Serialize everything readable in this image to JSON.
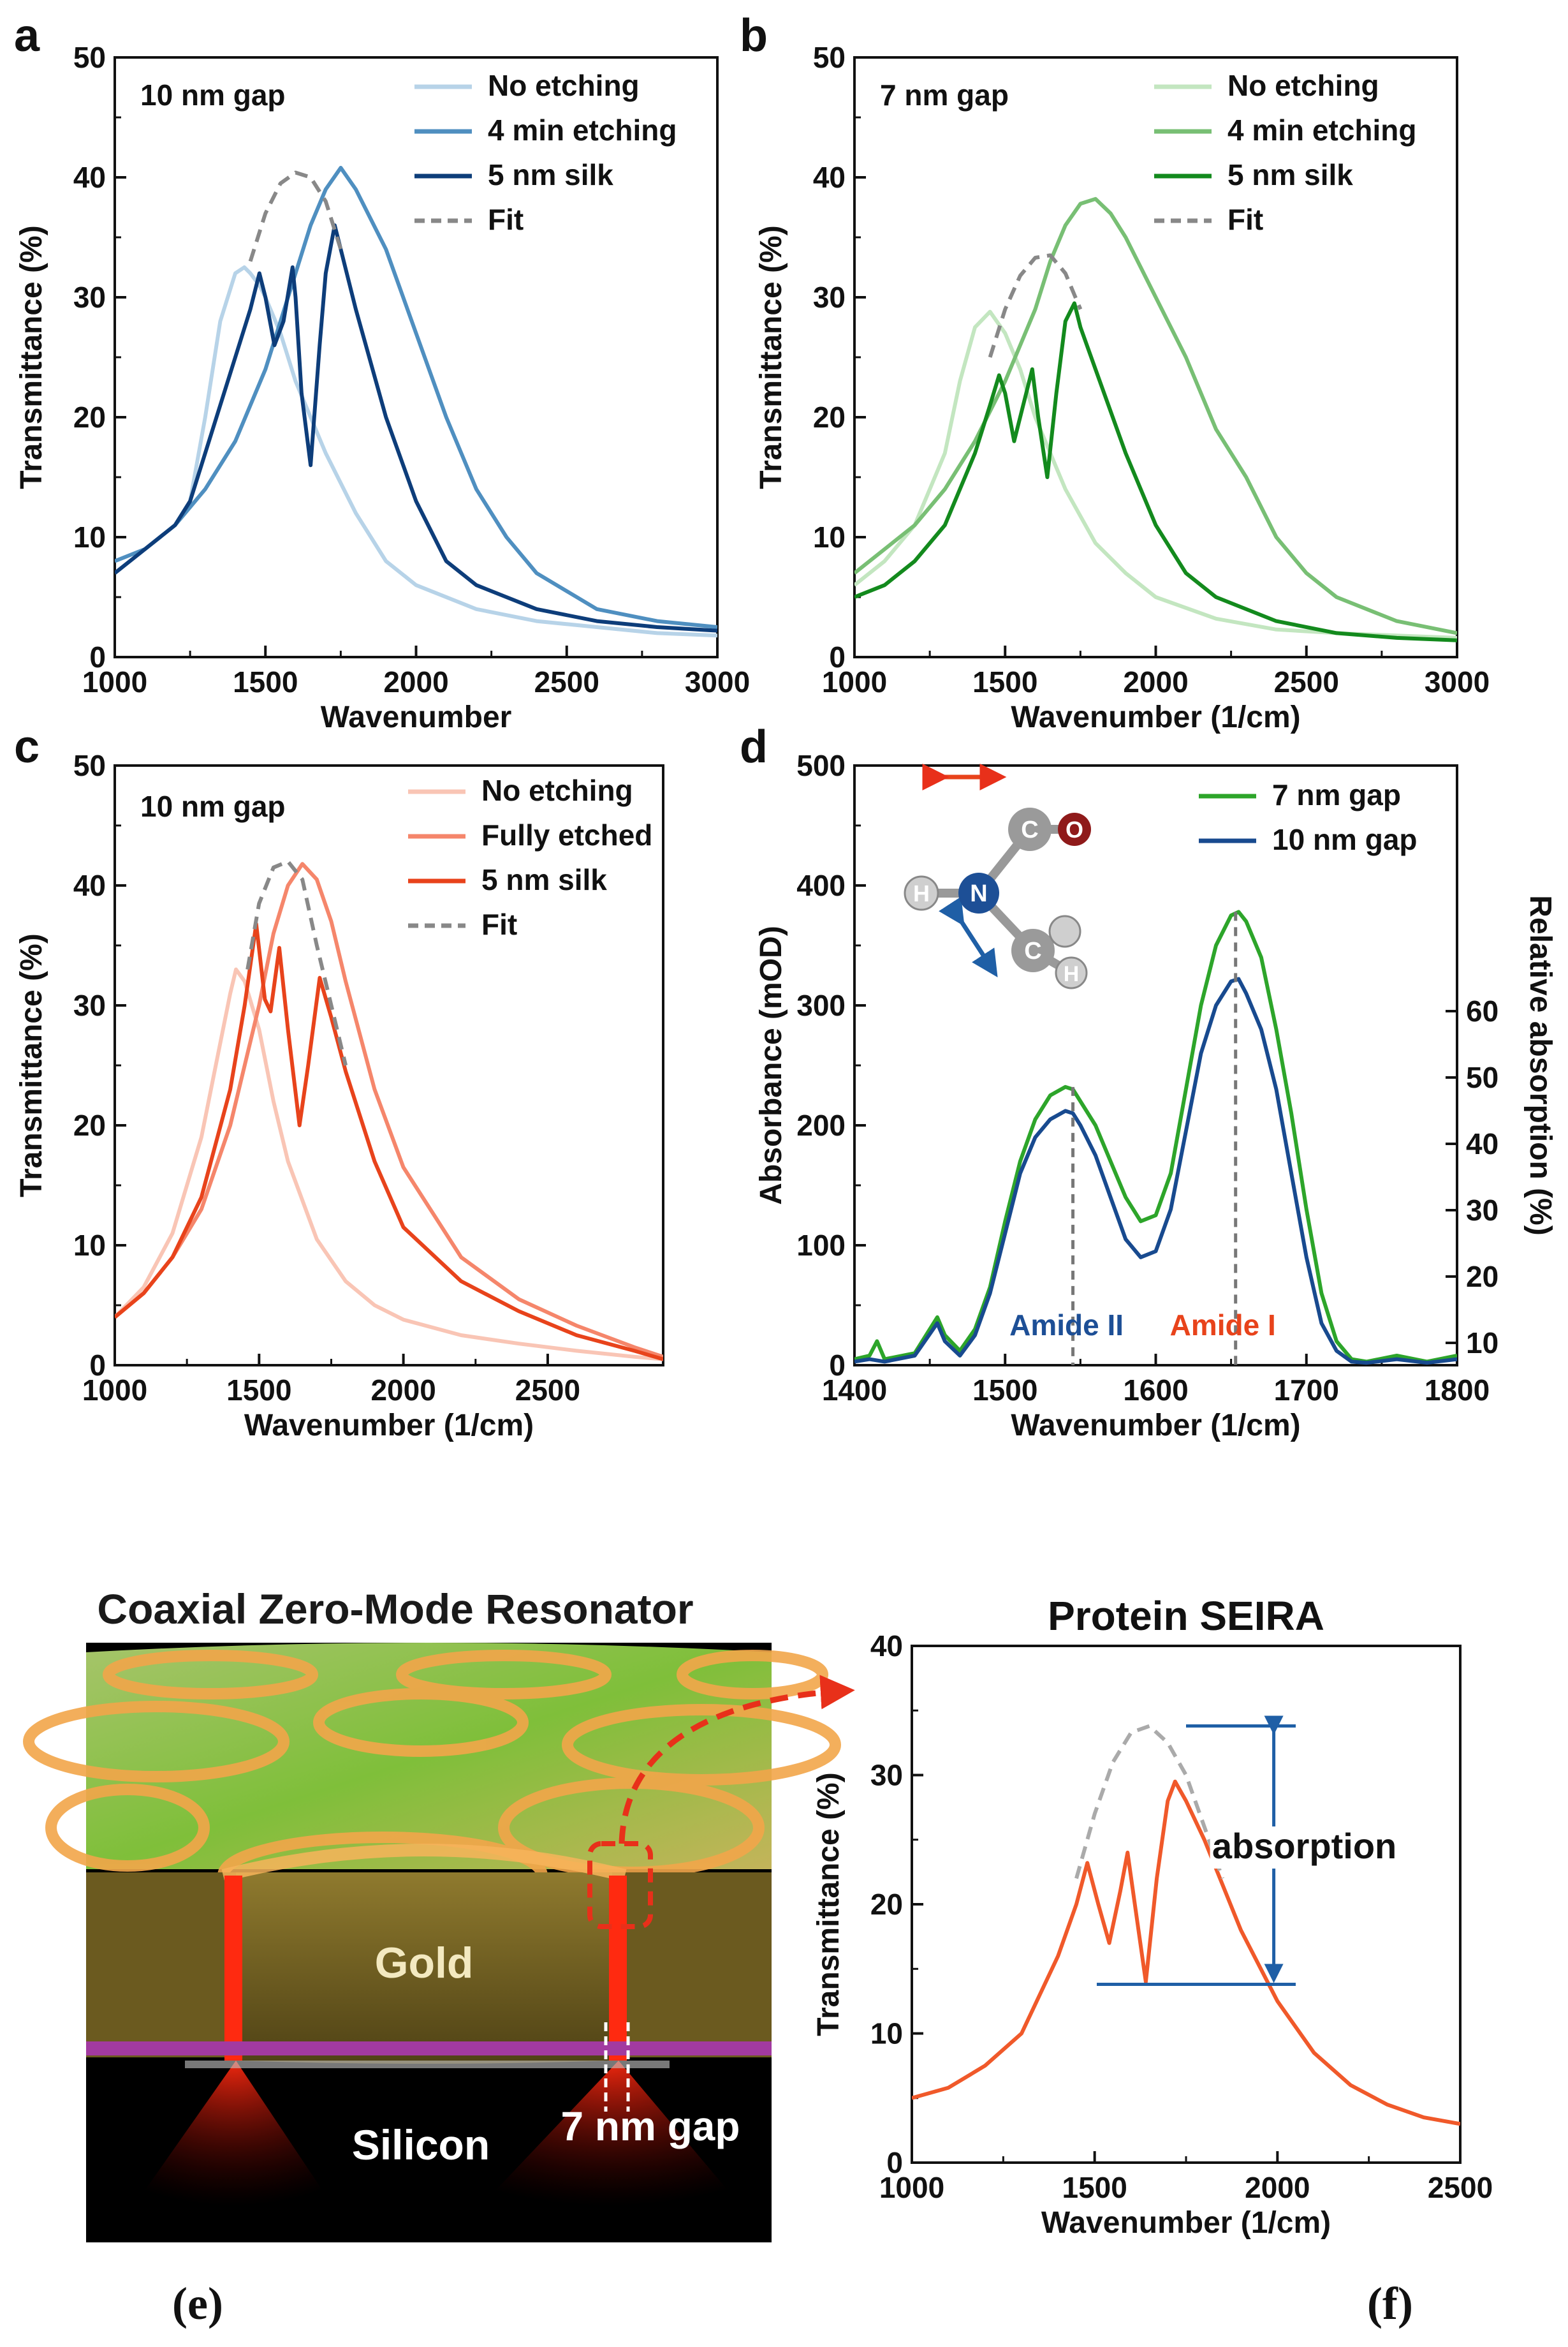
{
  "chart_data": [
    {
      "panel": "a",
      "type": "line",
      "annotation": "10 nm gap",
      "xlabel": "Wavenumber",
      "ylabel": "Transmittance (%)",
      "xlim": [
        1000,
        3000
      ],
      "ylim": [
        0,
        50
      ],
      "xticks": [
        1000,
        1500,
        2000,
        2500,
        3000
      ],
      "yticks": [
        0,
        10,
        20,
        30,
        40,
        50
      ],
      "legend_position": "top-right",
      "series": [
        {
          "name": "No etching",
          "color": "#b7d3e8",
          "style": "solid",
          "x": [
            1000,
            1100,
            1200,
            1250,
            1300,
            1350,
            1400,
            1430,
            1450,
            1480,
            1500,
            1550,
            1600,
            1700,
            1800,
            1900,
            2000,
            2200,
            2400,
            2600,
            2800,
            3000
          ],
          "y": [
            7,
            9,
            11,
            13,
            20,
            28,
            32,
            32.5,
            32,
            31,
            30,
            27,
            23,
            17,
            12,
            8,
            6,
            4,
            3,
            2.5,
            2,
            1.8
          ]
        },
        {
          "name": "4 min etching",
          "color": "#4f8fc0",
          "style": "solid",
          "x": [
            1000,
            1100,
            1200,
            1300,
            1400,
            1500,
            1550,
            1600,
            1650,
            1700,
            1750,
            1800,
            1900,
            2000,
            2100,
            2200,
            2300,
            2400,
            2600,
            2800,
            3000
          ],
          "y": [
            8,
            9,
            11,
            14,
            18,
            24,
            28,
            32,
            36,
            39,
            40.8,
            39,
            34,
            27,
            20,
            14,
            10,
            7,
            4,
            3,
            2.5
          ]
        },
        {
          "name": "5 nm silk",
          "color": "#0d3d7a",
          "style": "solid",
          "x": [
            1000,
            1100,
            1200,
            1250,
            1300,
            1400,
            1450,
            1480,
            1500,
            1530,
            1560,
            1590,
            1600,
            1620,
            1650,
            1680,
            1700,
            1730,
            1750,
            1800,
            1900,
            2000,
            2100,
            2200,
            2400,
            2600,
            2800,
            3000
          ],
          "y": [
            7,
            9,
            11,
            13,
            17,
            25,
            29,
            32,
            30,
            26,
            28,
            32.5,
            30,
            22,
            16,
            26,
            32,
            36,
            34,
            29,
            20,
            13,
            8,
            6,
            4,
            3,
            2.5,
            2.2
          ]
        },
        {
          "name": "Fit",
          "color": "#888888",
          "style": "dashed",
          "x": [
            1450,
            1500,
            1550,
            1600,
            1650,
            1700,
            1750
          ],
          "y": [
            33,
            37,
            39.5,
            40.4,
            40,
            38,
            34
          ]
        }
      ]
    },
    {
      "panel": "b",
      "type": "line",
      "annotation": "7 nm gap",
      "xlabel": "Wavenumber (1/cm)",
      "ylabel": "Transmittance (%)",
      "xlim": [
        1000,
        3000
      ],
      "ylim": [
        0,
        50
      ],
      "xticks": [
        1000,
        1500,
        2000,
        2500,
        3000
      ],
      "yticks": [
        0,
        10,
        20,
        30,
        40,
        50
      ],
      "legend_position": "top-right",
      "series": [
        {
          "name": "No etching",
          "color": "#c3e6c0",
          "style": "solid",
          "x": [
            1000,
            1100,
            1200,
            1300,
            1350,
            1400,
            1450,
            1500,
            1550,
            1600,
            1700,
            1800,
            1900,
            2000,
            2200,
            2400,
            2600,
            2800,
            3000
          ],
          "y": [
            6,
            8,
            11,
            17,
            23,
            27.5,
            28.8,
            27,
            24,
            20,
            14,
            9.5,
            7,
            5,
            3.2,
            2.3,
            2,
            1.8,
            1.6
          ]
        },
        {
          "name": "4 min etching",
          "color": "#78bf74",
          "style": "solid",
          "x": [
            1000,
            1100,
            1200,
            1300,
            1400,
            1500,
            1600,
            1650,
            1700,
            1750,
            1800,
            1850,
            1900,
            2000,
            2100,
            2200,
            2300,
            2400,
            2500,
            2600,
            2800,
            3000
          ],
          "y": [
            7,
            9,
            11,
            14,
            18,
            23,
            29,
            33,
            36,
            37.8,
            38.2,
            37,
            35,
            30,
            25,
            19,
            15,
            10,
            7,
            5,
            3,
            2
          ]
        },
        {
          "name": "5 nm silk",
          "color": "#138a1d",
          "style": "solid",
          "x": [
            1000,
            1100,
            1200,
            1300,
            1400,
            1450,
            1480,
            1500,
            1530,
            1560,
            1590,
            1610,
            1640,
            1670,
            1700,
            1730,
            1750,
            1800,
            1900,
            2000,
            2100,
            2200,
            2400,
            2600,
            2800,
            3000
          ],
          "y": [
            5,
            6,
            8,
            11,
            17,
            21,
            23.5,
            22,
            18,
            21,
            24,
            20,
            15,
            22,
            28,
            29.5,
            27.5,
            24,
            17,
            11,
            7,
            5,
            3,
            2,
            1.6,
            1.4
          ]
        },
        {
          "name": "Fit",
          "color": "#888888",
          "style": "dashed",
          "x": [
            1450,
            1500,
            1550,
            1600,
            1650,
            1700,
            1750
          ],
          "y": [
            25,
            29,
            31.8,
            33.3,
            33.5,
            32,
            29
          ]
        }
      ]
    },
    {
      "panel": "c",
      "type": "line",
      "annotation": "10 nm gap",
      "xlabel": "Wavenumber (1/cm)",
      "ylabel": "Transmittance (%)",
      "xlim": [
        1000,
        2900
      ],
      "ylim": [
        0,
        50
      ],
      "xticks": [
        1000,
        1500,
        2000,
        2500
      ],
      "yticks": [
        0,
        10,
        20,
        30,
        40,
        50
      ],
      "legend_position": "top-right",
      "series": [
        {
          "name": "No etching",
          "color": "#f9c5b5",
          "style": "solid",
          "x": [
            1000,
            1100,
            1200,
            1300,
            1350,
            1400,
            1420,
            1450,
            1500,
            1550,
            1600,
            1700,
            1800,
            1900,
            2000,
            2200,
            2400,
            2600,
            2800,
            2900
          ],
          "y": [
            4,
            6.5,
            11,
            19,
            25,
            31,
            33,
            32,
            28,
            22,
            17,
            10.5,
            7,
            5,
            3.8,
            2.5,
            1.8,
            1.2,
            0.7,
            0.5
          ]
        },
        {
          "name": "Fully etched",
          "color": "#f5866b",
          "style": "solid",
          "x": [
            1000,
            1100,
            1200,
            1300,
            1400,
            1500,
            1550,
            1600,
            1650,
            1700,
            1750,
            1800,
            1900,
            2000,
            2200,
            2400,
            2600,
            2800,
            2900
          ],
          "y": [
            4,
            6,
            9,
            13,
            20,
            30,
            36,
            40,
            41.8,
            40.5,
            37,
            32,
            23,
            16.5,
            9,
            5.5,
            3.3,
            1.5,
            0.7
          ]
        },
        {
          "name": "5 nm silk",
          "color": "#e8431b",
          "style": "solid",
          "x": [
            1000,
            1100,
            1200,
            1300,
            1400,
            1450,
            1490,
            1520,
            1540,
            1570,
            1600,
            1640,
            1670,
            1710,
            1750,
            1800,
            1900,
            2000,
            2200,
            2400,
            2600,
            2800,
            2900
          ],
          "y": [
            4,
            6,
            9,
            14,
            23,
            30,
            36.8,
            30.5,
            29.5,
            34.8,
            28,
            20,
            25,
            32.3,
            29,
            24.5,
            17,
            11.5,
            7,
            4.5,
            2.5,
            1.2,
            0.5
          ]
        },
        {
          "name": "Fit",
          "color": "#888888",
          "style": "dashed",
          "x": [
            1460,
            1500,
            1550,
            1600,
            1650,
            1700,
            1750,
            1800
          ],
          "y": [
            33,
            38.5,
            41.5,
            42,
            40.5,
            35,
            30,
            25
          ]
        }
      ]
    },
    {
      "panel": "d",
      "type": "line",
      "xlabel": "Wavenumber (1/cm)",
      "ylabel": "Absorbance (mOD)",
      "ylabel_right": "Relative absorption (%)",
      "xlim": [
        1400,
        1800
      ],
      "ylim": [
        0,
        500
      ],
      "xticks": [
        1400,
        1500,
        1600,
        1700,
        1800
      ],
      "yticks": [
        0,
        100,
        200,
        300,
        400,
        500
      ],
      "yticks_right": [
        10,
        20,
        30,
        40,
        50,
        60
      ],
      "legend_position": "top-right",
      "annotations": [
        "Amide II",
        "Amide I"
      ],
      "peak_positions": [
        1545,
        1653
      ],
      "molecule_labels": [
        "C",
        "O",
        "N",
        "H",
        "C",
        "H"
      ],
      "series": [
        {
          "name": "7 nm gap",
          "color": "#2da52a",
          "style": "solid",
          "x": [
            1400,
            1410,
            1415,
            1420,
            1440,
            1455,
            1460,
            1470,
            1480,
            1490,
            1500,
            1510,
            1520,
            1530,
            1540,
            1545,
            1550,
            1560,
            1570,
            1580,
            1590,
            1600,
            1610,
            1620,
            1630,
            1640,
            1650,
            1655,
            1660,
            1670,
            1680,
            1690,
            1700,
            1710,
            1720,
            1730,
            1740,
            1760,
            1780,
            1800
          ],
          "y": [
            5,
            8,
            20,
            5,
            10,
            40,
            25,
            12,
            30,
            65,
            120,
            170,
            205,
            225,
            232,
            230,
            220,
            200,
            170,
            140,
            120,
            125,
            160,
            230,
            300,
            350,
            375,
            378,
            370,
            340,
            280,
            210,
            130,
            60,
            20,
            5,
            3,
            8,
            3,
            8
          ]
        },
        {
          "name": "10 nm gap",
          "color": "#184a8f",
          "style": "solid",
          "x": [
            1400,
            1410,
            1420,
            1440,
            1455,
            1460,
            1470,
            1480,
            1490,
            1500,
            1510,
            1520,
            1530,
            1540,
            1545,
            1550,
            1560,
            1570,
            1580,
            1590,
            1600,
            1610,
            1620,
            1630,
            1640,
            1650,
            1655,
            1660,
            1670,
            1680,
            1690,
            1700,
            1710,
            1720,
            1730,
            1740,
            1760,
            1780,
            1800
          ],
          "y": [
            3,
            5,
            3,
            8,
            35,
            20,
            8,
            25,
            60,
            110,
            160,
            190,
            205,
            212,
            210,
            200,
            175,
            140,
            105,
            90,
            95,
            130,
            195,
            260,
            300,
            320,
            322,
            310,
            280,
            230,
            160,
            90,
            35,
            12,
            3,
            2,
            5,
            2,
            5
          ]
        }
      ]
    },
    {
      "panel": "f",
      "type": "line",
      "title": "Protein SEIRA",
      "xlabel": "Wavenumber (1/cm)",
      "ylabel": "Transmittance (%)",
      "xlim": [
        1000,
        2500
      ],
      "ylim": [
        0,
        40
      ],
      "xticks": [
        1000,
        1500,
        2000,
        2500
      ],
      "yticks": [
        0,
        10,
        20,
        30,
        40
      ],
      "annotation": "absorption",
      "absorption_span": [
        13.8,
        33.8
      ],
      "series": [
        {
          "name": "",
          "color": "#f0592a",
          "style": "solid",
          "x": [
            1000,
            1100,
            1200,
            1300,
            1400,
            1450,
            1480,
            1510,
            1540,
            1570,
            1590,
            1610,
            1640,
            1670,
            1700,
            1720,
            1750,
            1800,
            1900,
            2000,
            2100,
            2200,
            2300,
            2400,
            2500
          ],
          "y": [
            5,
            5.8,
            7.5,
            10,
            16,
            20,
            23.2,
            20,
            17,
            21,
            24,
            20,
            14,
            22,
            28,
            29.5,
            28,
            25,
            18,
            12.5,
            8.5,
            6,
            4.5,
            3.5,
            3
          ]
        },
        {
          "name": "",
          "color": "#aaaaaa",
          "style": "dashed",
          "x": [
            1450,
            1500,
            1550,
            1600,
            1650,
            1700,
            1750,
            1800,
            1850
          ],
          "y": [
            22,
            27,
            31,
            33.3,
            33.8,
            32.5,
            30,
            26,
            22
          ]
        }
      ]
    }
  ],
  "figure_texts": {
    "panel_a": "a",
    "panel_b": "b",
    "panel_c": "c",
    "panel_d": "d",
    "illustration_title": "Coaxial Zero-Mode Resonator",
    "gold_label": "Gold",
    "silicon_label": "Silicon",
    "gap_label": "7 nm gap",
    "caption_e": "(e)",
    "caption_f": "(f)"
  }
}
